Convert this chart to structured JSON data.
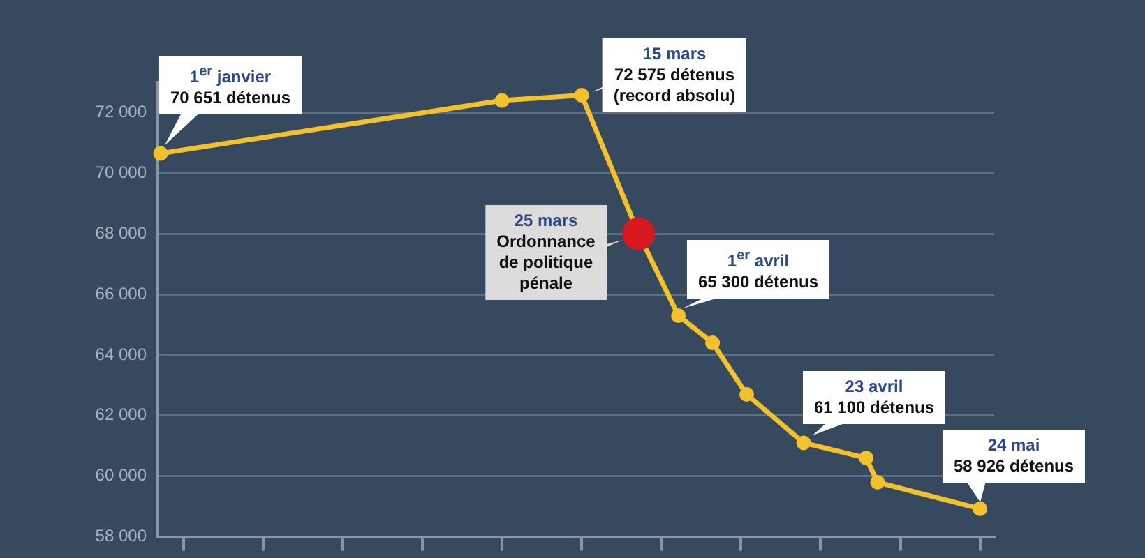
{
  "chart_data": {
    "type": "line",
    "marker": "circle",
    "grid": "y",
    "tick_labels": "y",
    "categories": [
      null,
      null,
      null,
      null,
      null,
      null,
      null,
      null,
      null,
      null,
      null,
      null,
      null,
      null,
      null,
      null,
      null,
      null,
      null,
      null,
      null,
      null,
      null,
      null,
      null,
      null,
      null,
      null,
      null,
      null,
      null,
      null,
      null,
      null,
      null,
      null,
      null,
      null,
      null,
      null,
      null,
      null,
      null,
      null,
      null,
      null,
      null,
      null,
      null,
      null,
      null,
      null,
      null,
      null,
      null,
      null,
      null,
      null,
      null,
      null,
      null,
      null,
      null,
      null,
      null,
      null,
      null,
      null,
      null,
      null,
      null,
      null,
      null,
      null,
      null,
      null,
      null,
      null,
      null,
      null,
      null,
      null,
      null,
      null,
      null,
      null,
      null,
      null,
      null,
      null,
      null,
      null,
      null,
      null,
      null,
      null,
      null,
      null,
      null,
      null,
      null,
      null,
      null,
      null,
      null,
      null,
      null,
      null,
      null,
      null,
      null,
      null,
      null,
      null,
      null,
      null,
      null,
      null,
      null,
      null,
      null,
      null,
      null,
      null,
      null,
      null,
      null,
      null,
      null,
      null,
      null,
      null,
      null,
      null,
      null,
      null,
      null,
      null,
      null,
      null,
      null,
      null,
      null,
      null,
      null,
      null,
      null
    ],
    "ylim": [
      58000,
      73000
    ],
    "yticks": [
      {
        "value": 58000,
        "label": "58 000"
      },
      {
        "value": 60000,
        "label": "60 000"
      },
      {
        "value": 62000,
        "label": "62 000"
      },
      {
        "value": 64000,
        "label": "64 000"
      },
      {
        "value": 66000,
        "label": "66 000"
      },
      {
        "value": 68000,
        "label": "68 000"
      },
      {
        "value": 70000,
        "label": "70 000"
      },
      {
        "value": 72000,
        "label": "72 000"
      }
    ],
    "series": [
      {
        "color": "#f2c12e",
        "values": [
          70651,
          null,
          null,
          null,
          null,
          null,
          null,
          null,
          null,
          null,
          null,
          null,
          null,
          null,
          null,
          null,
          null,
          null,
          null,
          null,
          null,
          null,
          null,
          null,
          null,
          null,
          null,
          null,
          null,
          null,
          null,
          null,
          null,
          null,
          null,
          null,
          null,
          null,
          null,
          null,
          null,
          null,
          null,
          null,
          null,
          null,
          null,
          null,
          null,
          null,
          null,
          null,
          null,
          null,
          null,
          null,
          null,
          null,
          null,
          null,
          72400,
          null,
          null,
          null,
          null,
          null,
          null,
          null,
          null,
          null,
          null,
          null,
          null,
          null,
          72575,
          null,
          null,
          null,
          null,
          null,
          null,
          null,
          null,
          null,
          68000,
          null,
          null,
          null,
          null,
          null,
          null,
          65300,
          null,
          null,
          null,
          null,
          null,
          64400,
          null,
          null,
          null,
          null,
          null,
          62700,
          null,
          null,
          null,
          null,
          null,
          null,
          null,
          null,
          null,
          61100,
          null,
          null,
          null,
          null,
          null,
          null,
          null,
          null,
          null,
          null,
          60600,
          null,
          59800,
          null,
          null,
          null,
          null,
          null,
          null,
          null,
          null,
          null,
          null,
          null,
          null,
          null,
          null,
          null,
          null,
          null,
          58926,
          null,
          null
        ],
        "colors": [
          "#f2c12e",
          null,
          null,
          null,
          null,
          null,
          null,
          null,
          null,
          null,
          null,
          null,
          null,
          null,
          null,
          null,
          null,
          null,
          null,
          null,
          null,
          null,
          null,
          null,
          null,
          null,
          null,
          null,
          null,
          null,
          null,
          null,
          null,
          null,
          null,
          null,
          null,
          null,
          null,
          null,
          null,
          null,
          null,
          null,
          null,
          null,
          null,
          null,
          null,
          null,
          null,
          null,
          null,
          null,
          null,
          null,
          null,
          null,
          null,
          null,
          "#f2c12e",
          null,
          null,
          null,
          null,
          null,
          null,
          null,
          null,
          null,
          null,
          null,
          null,
          null,
          "#f2c12e",
          null,
          null,
          null,
          null,
          null,
          null,
          null,
          null,
          null,
          "#d7191f",
          null,
          null,
          null,
          null,
          null,
          null,
          "#f2c12e",
          null,
          null,
          null,
          null,
          null,
          "#f2c12e",
          null,
          null,
          null,
          null,
          null,
          "#f2c12e",
          null,
          null,
          null,
          null,
          null,
          null,
          null,
          null,
          null,
          "#f2c12e",
          null,
          null,
          null,
          null,
          null,
          null,
          null,
          null,
          null,
          null,
          "#f2c12e",
          null,
          "#f2c12e",
          null,
          null,
          null,
          null,
          null,
          null,
          null,
          null,
          null,
          null,
          null,
          null,
          null,
          null,
          null,
          null,
          null,
          "#f2c12e",
          null,
          null
        ]
      }
    ],
    "annotations": [
      "1$^{er}$ janvier\n70 651 détenus",
      "15 mars\n72 575 détenus\n(record absolu)",
      "25 mars\nOrdonnance\nde politique\npénale",
      "1$^{er}$ avril\n65 300 détenus",
      "23 avril\n61 100 détenus",
      "24 mai\n58 926 détenus"
    ]
  }
}
